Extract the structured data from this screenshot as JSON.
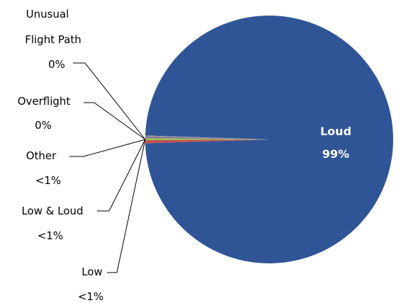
{
  "chart_data": {
    "type": "pie",
    "slices": [
      {
        "label": "Loud",
        "display": "99%",
        "value": 99.0,
        "color": "#2F5597"
      },
      {
        "label": "Low",
        "display": "<1%",
        "value": 0.4,
        "color": "#C0504D"
      },
      {
        "label": "Low & Loud",
        "display": "<1%",
        "value": 0.3,
        "color": "#9BBB59"
      },
      {
        "label": "Other",
        "display": "<1%",
        "value": 0.2,
        "color": "#8064A2"
      },
      {
        "label": "Overflight",
        "display": "0%",
        "value": 0.05,
        "color": "#4BACC6"
      },
      {
        "label": "Unusual Flight Path",
        "display": "0%",
        "value": 0.05,
        "color": "#F79646"
      }
    ],
    "legend": "none"
  }
}
